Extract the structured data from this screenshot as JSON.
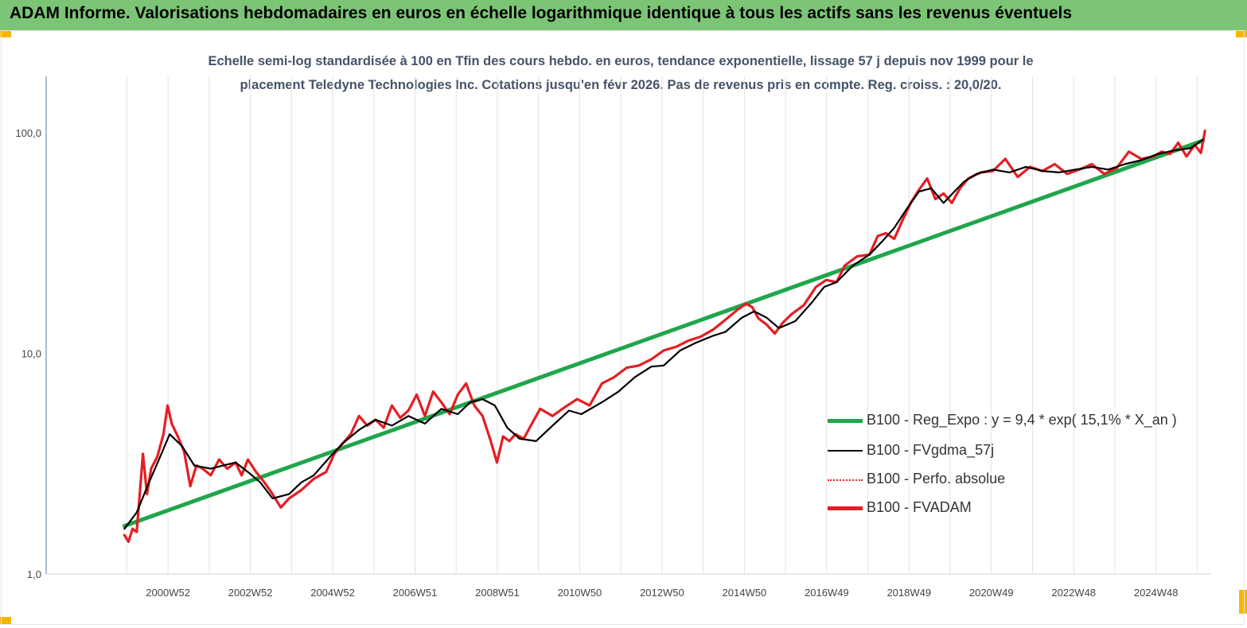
{
  "header": {
    "title": "ADAM Informe. Valorisations hebdomadaires en euros en échelle logarithmique identique à tous les actifs sans les revenus éventuels"
  },
  "colors": {
    "header_bg": "#7cc576",
    "accent": "#f2b800",
    "reg_line": "#1fa64b",
    "fvgdma": "#000000",
    "perfo": "#e31e24",
    "fvadam": "#e31e24"
  },
  "chart_data": {
    "type": "line",
    "title_line1": "Echelle semi-log standardisée à 100 en Tfin des cours hebdo. en euros, tendance exponentielle, lissage 57 j depuis nov 1999 pour le",
    "title_line2": "placement Teledyne Technologies Inc. Cotations jusqu'en févr 2026. Pas de revenus pris en compte. Reg. croiss. : 20,0/20.",
    "y_scale": "log",
    "ylim": [
      1,
      180
    ],
    "y_ticks": [
      {
        "value": 1,
        "label": "1,0"
      },
      {
        "value": 10,
        "label": "10,0"
      },
      {
        "value": 100,
        "label": "100,0"
      }
    ],
    "xlim": [
      1998.0,
      2026.3
    ],
    "x_ticks": [
      {
        "value": 2000.96,
        "label": "2000W52"
      },
      {
        "value": 2002.96,
        "label": "2002W52"
      },
      {
        "value": 2004.96,
        "label": "2004W52"
      },
      {
        "value": 2006.96,
        "label": "2006W51"
      },
      {
        "value": 2008.96,
        "label": "2008W51"
      },
      {
        "value": 2010.96,
        "label": "2010W50"
      },
      {
        "value": 2012.96,
        "label": "2012W50"
      },
      {
        "value": 2014.96,
        "label": "2014W50"
      },
      {
        "value": 2016.96,
        "label": "2016W49"
      },
      {
        "value": 2018.96,
        "label": "2018W49"
      },
      {
        "value": 2020.96,
        "label": "2020W49"
      },
      {
        "value": 2022.96,
        "label": "2022W48"
      },
      {
        "value": 2024.96,
        "label": "2024W48"
      }
    ],
    "grid": "vertical",
    "legend_position": "right-middle",
    "series": [
      {
        "name": "B100 - Reg_Expo : y = 9,4 * exp( 15,1% *  X_an )",
        "style": "solid-thick",
        "x": [
          1999.9,
          2026.1
        ],
        "y": [
          1.65,
          92.0
        ]
      },
      {
        "name": "B100 - FVgdma_57j",
        "style": "solid-thin",
        "x": [
          1999.9,
          2000.2,
          2000.5,
          2000.8,
          2001.0,
          2001.3,
          2001.6,
          2002.0,
          2002.3,
          2002.6,
          2002.9,
          2003.2,
          2003.5,
          2003.9,
          2004.2,
          2004.5,
          2004.9,
          2005.2,
          2005.6,
          2006.0,
          2006.4,
          2006.8,
          2007.2,
          2007.6,
          2008.0,
          2008.3,
          2008.6,
          2008.9,
          2009.2,
          2009.5,
          2009.9,
          2010.3,
          2010.7,
          2011.0,
          2011.5,
          2011.9,
          2012.3,
          2012.7,
          2013.0,
          2013.4,
          2013.8,
          2014.2,
          2014.5,
          2014.9,
          2015.2,
          2015.5,
          2015.8,
          2016.2,
          2016.6,
          2016.9,
          2017.2,
          2017.6,
          2018.0,
          2018.3,
          2018.6,
          2018.9,
          2019.2,
          2019.5,
          2019.8,
          2020.1,
          2020.3,
          2020.6,
          2021.0,
          2021.4,
          2021.8,
          2022.2,
          2022.6,
          2023.0,
          2023.4,
          2023.8,
          2024.2,
          2024.6,
          2025.0,
          2025.4,
          2025.8,
          2026.1
        ],
        "y": [
          1.6,
          1.9,
          2.6,
          3.5,
          4.3,
          3.8,
          3.1,
          3.0,
          3.1,
          3.2,
          2.9,
          2.6,
          2.2,
          2.3,
          2.6,
          2.8,
          3.4,
          3.9,
          4.5,
          5.0,
          4.7,
          5.2,
          4.8,
          5.6,
          5.3,
          6.0,
          6.2,
          5.8,
          4.6,
          4.1,
          4.0,
          4.7,
          5.5,
          5.3,
          6.0,
          6.7,
          7.8,
          8.7,
          8.8,
          10.3,
          11.2,
          12.0,
          12.5,
          14.5,
          15.5,
          14.5,
          13.0,
          14.0,
          17.0,
          20.0,
          21.0,
          25.0,
          28.0,
          32.0,
          37.0,
          45.0,
          54.0,
          56.0,
          48.0,
          55.0,
          60.0,
          65.0,
          68.0,
          66.0,
          70.0,
          67.0,
          66.0,
          68.0,
          70.0,
          68.0,
          72.0,
          75.0,
          80.0,
          83.0,
          85.0,
          93.0
        ]
      },
      {
        "name": "B100 - Perfo. absolue",
        "style": "dotted",
        "x": [],
        "y": []
      },
      {
        "name": "B100 - FVADAM",
        "style": "solid-thick",
        "x": [
          1999.9,
          2000.0,
          2000.1,
          2000.2,
          2000.35,
          2000.45,
          2000.55,
          2000.7,
          2000.85,
          2000.95,
          2001.05,
          2001.2,
          2001.35,
          2001.5,
          2001.65,
          2001.8,
          2002.0,
          2002.2,
          2002.4,
          2002.6,
          2002.75,
          2002.9,
          2003.1,
          2003.3,
          2003.5,
          2003.7,
          2003.9,
          2004.2,
          2004.5,
          2004.8,
          2005.0,
          2005.2,
          2005.4,
          2005.6,
          2005.8,
          2006.0,
          2006.2,
          2006.4,
          2006.6,
          2006.8,
          2007.0,
          2007.2,
          2007.4,
          2007.6,
          2007.8,
          2008.0,
          2008.2,
          2008.4,
          2008.6,
          2008.8,
          2008.95,
          2009.1,
          2009.25,
          2009.4,
          2009.6,
          2009.8,
          2010.0,
          2010.3,
          2010.6,
          2010.9,
          2011.2,
          2011.5,
          2011.8,
          2012.1,
          2012.4,
          2012.7,
          2013.0,
          2013.3,
          2013.6,
          2013.9,
          2014.2,
          2014.5,
          2014.8,
          2015.0,
          2015.15,
          2015.3,
          2015.5,
          2015.7,
          2015.9,
          2016.1,
          2016.4,
          2016.7,
          2016.95,
          2017.2,
          2017.4,
          2017.7,
          2018.0,
          2018.2,
          2018.4,
          2018.6,
          2018.8,
          2019.0,
          2019.2,
          2019.4,
          2019.6,
          2019.8,
          2020.0,
          2020.2,
          2020.4,
          2020.7,
          2021.0,
          2021.3,
          2021.6,
          2021.9,
          2022.2,
          2022.5,
          2022.8,
          2023.1,
          2023.4,
          2023.7,
          2024.0,
          2024.3,
          2024.6,
          2024.9,
          2025.1,
          2025.3,
          2025.5,
          2025.7,
          2025.9,
          2026.05,
          2026.15
        ],
        "y": [
          1.5,
          1.4,
          1.6,
          1.55,
          3.5,
          2.3,
          3.0,
          3.4,
          4.3,
          5.8,
          4.8,
          4.2,
          3.6,
          2.5,
          3.1,
          3.0,
          2.8,
          3.3,
          3.0,
          3.2,
          2.8,
          3.3,
          2.9,
          2.6,
          2.3,
          2.0,
          2.2,
          2.4,
          2.7,
          2.9,
          3.5,
          3.9,
          4.3,
          5.2,
          4.7,
          5.0,
          4.6,
          5.8,
          5.1,
          5.5,
          6.5,
          5.2,
          6.7,
          6.0,
          5.3,
          6.5,
          7.3,
          5.8,
          5.2,
          4.0,
          3.2,
          4.2,
          4.0,
          4.3,
          4.1,
          4.8,
          5.6,
          5.2,
          5.7,
          6.2,
          5.8,
          7.3,
          7.8,
          8.6,
          8.8,
          9.4,
          10.3,
          10.7,
          11.4,
          11.9,
          12.8,
          14.2,
          15.8,
          16.8,
          16.2,
          14.4,
          13.5,
          12.3,
          13.8,
          15.0,
          16.5,
          20.0,
          21.5,
          21.0,
          25.0,
          27.5,
          28.0,
          34.0,
          35.0,
          33.0,
          40.0,
          48.0,
          55.0,
          62.0,
          50.0,
          53.0,
          48.0,
          56.0,
          62.0,
          66.0,
          67.0,
          76.0,
          63.0,
          70.0,
          67.0,
          72.0,
          65.0,
          68.0,
          72.0,
          65.0,
          69.0,
          82.0,
          76.0,
          78.0,
          82.0,
          80.0,
          90.0,
          78.0,
          88.0,
          81.0,
          102.0
        ]
      }
    ]
  }
}
